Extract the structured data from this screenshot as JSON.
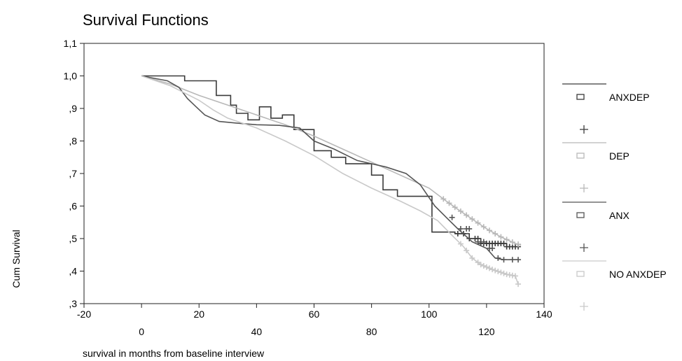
{
  "chart_data": {
    "type": "line",
    "title": "Survival Functions",
    "xlabel": "survival in months from baseline interview",
    "ylabel": "Cum Survival",
    "xlim": [
      -20,
      140
    ],
    "ylim": [
      0.3,
      1.1
    ],
    "x_tick_labels_upper": [
      "-20",
      "20",
      "60",
      "100",
      "140"
    ],
    "x_tick_labels_lower": [
      "0",
      "40",
      "80",
      "120"
    ],
    "y_tick_labels": [
      ",3",
      ",4",
      ",5",
      ",6",
      ",7",
      ",8",
      ",9",
      "1,0",
      "1,1"
    ],
    "grid": false,
    "legend_position": "right",
    "series": [
      {
        "name": "ANXDEP",
        "color": "#3a3a3a",
        "step": true,
        "points": [
          [
            0,
            1.0
          ],
          [
            15,
            1.0
          ],
          [
            15,
            0.985
          ],
          [
            26,
            0.985
          ],
          [
            26,
            0.94
          ],
          [
            31,
            0.94
          ],
          [
            31,
            0.91
          ],
          [
            33,
            0.91
          ],
          [
            33,
            0.885
          ],
          [
            37,
            0.885
          ],
          [
            37,
            0.865
          ],
          [
            41,
            0.865
          ],
          [
            41,
            0.905
          ],
          [
            45,
            0.905
          ],
          [
            45,
            0.87
          ],
          [
            49,
            0.87
          ],
          [
            49,
            0.88
          ],
          [
            53,
            0.88
          ],
          [
            53,
            0.835
          ],
          [
            60,
            0.835
          ],
          [
            60,
            0.77
          ],
          [
            66,
            0.77
          ],
          [
            66,
            0.75
          ],
          [
            71,
            0.75
          ],
          [
            71,
            0.73
          ],
          [
            80,
            0.73
          ],
          [
            80,
            0.695
          ],
          [
            84,
            0.695
          ],
          [
            84,
            0.65
          ],
          [
            89,
            0.65
          ],
          [
            89,
            0.63
          ],
          [
            101,
            0.63
          ],
          [
            101,
            0.52
          ],
          [
            109,
            0.52
          ],
          [
            109,
            0.515
          ],
          [
            114,
            0.515
          ],
          [
            114,
            0.5
          ],
          [
            118,
            0.5
          ],
          [
            118,
            0.485
          ],
          [
            127,
            0.485
          ],
          [
            127,
            0.475
          ]
        ],
        "censor_x": [
          110,
          112,
          114,
          116,
          117,
          118,
          119,
          120,
          121,
          122,
          123,
          124,
          125,
          126,
          127,
          128,
          129,
          130,
          131
        ]
      },
      {
        "name": "DEP",
        "color": "#b8b8b8",
        "step": false,
        "points": [
          [
            0,
            1.0
          ],
          [
            10,
            0.975
          ],
          [
            20,
            0.94
          ],
          [
            30,
            0.91
          ],
          [
            40,
            0.88
          ],
          [
            50,
            0.85
          ],
          [
            60,
            0.815
          ],
          [
            70,
            0.775
          ],
          [
            80,
            0.735
          ],
          [
            90,
            0.695
          ],
          [
            100,
            0.655
          ],
          [
            106,
            0.615
          ],
          [
            110,
            0.59
          ],
          [
            115,
            0.56
          ],
          [
            120,
            0.53
          ],
          [
            125,
            0.505
          ],
          [
            130,
            0.485
          ],
          [
            132,
            0.48
          ]
        ],
        "censor_x": [
          105,
          107,
          109,
          111,
          113,
          115,
          117,
          119,
          121,
          123,
          125,
          127,
          129,
          131
        ]
      },
      {
        "name": "ANX",
        "color": "#555555",
        "step": true,
        "points": [
          [
            0,
            1.0
          ],
          [
            9,
            0.985
          ],
          [
            13,
            0.965
          ],
          [
            16,
            0.93
          ],
          [
            19,
            0.905
          ],
          [
            22,
            0.88
          ],
          [
            27,
            0.86
          ],
          [
            33,
            0.855
          ],
          [
            40,
            0.85
          ],
          [
            48,
            0.848
          ],
          [
            55,
            0.84
          ],
          [
            60,
            0.8
          ],
          [
            67,
            0.775
          ],
          [
            75,
            0.74
          ],
          [
            85,
            0.72
          ],
          [
            92,
            0.7
          ],
          [
            97,
            0.665
          ],
          [
            102,
            0.6
          ],
          [
            106,
            0.565
          ],
          [
            110,
            0.53
          ],
          [
            115,
            0.49
          ],
          [
            120,
            0.47
          ],
          [
            123,
            0.44
          ],
          [
            126,
            0.435
          ],
          [
            131,
            0.435
          ]
        ],
        "censor_x": [
          108,
          111,
          113,
          114,
          117,
          119,
          121,
          122,
          124,
          126,
          129,
          131
        ]
      },
      {
        "name": "NO ANXDEP",
        "color": "#c9c9c9",
        "step": false,
        "points": [
          [
            0,
            1.0
          ],
          [
            10,
            0.97
          ],
          [
            20,
            0.925
          ],
          [
            25,
            0.895
          ],
          [
            30,
            0.87
          ],
          [
            40,
            0.84
          ],
          [
            50,
            0.8
          ],
          [
            60,
            0.755
          ],
          [
            70,
            0.7
          ],
          [
            80,
            0.655
          ],
          [
            90,
            0.615
          ],
          [
            97,
            0.585
          ],
          [
            103,
            0.555
          ],
          [
            108,
            0.51
          ],
          [
            112,
            0.475
          ],
          [
            115,
            0.44
          ],
          [
            118,
            0.42
          ],
          [
            122,
            0.405
          ],
          [
            127,
            0.39
          ],
          [
            130,
            0.385
          ],
          [
            131,
            0.36
          ]
        ],
        "censor_x": [
          111,
          113,
          115,
          117,
          118,
          119,
          120,
          121,
          122,
          123,
          124,
          125,
          126,
          127,
          128,
          129,
          130,
          131
        ]
      }
    ]
  }
}
